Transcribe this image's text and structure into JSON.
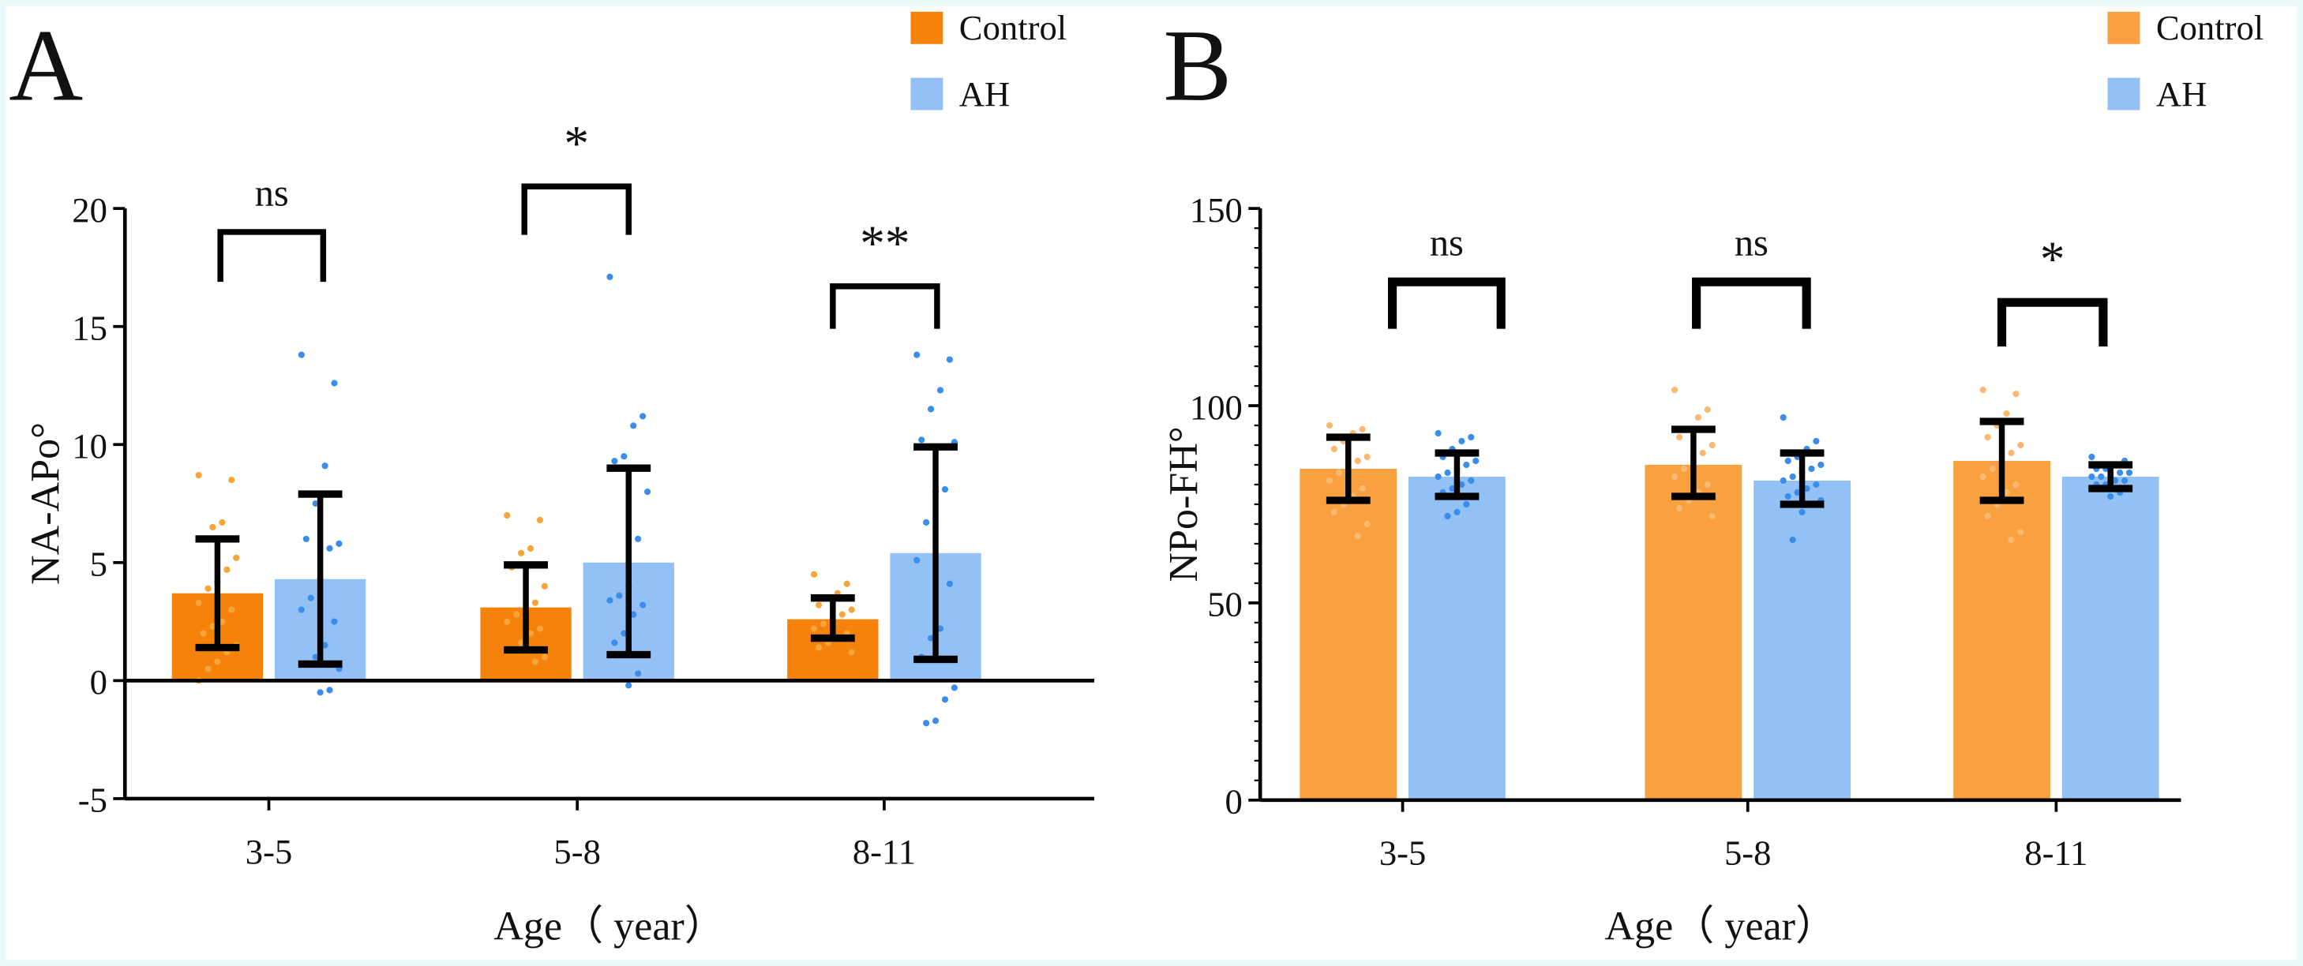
{
  "chart_data": [
    {
      "type": "bar",
      "panel_label": "A",
      "xlabel": "Age（ year）",
      "ylabel": "NA-APo°",
      "ylim": [
        -5,
        20
      ],
      "yticks": [
        "-5",
        "0",
        "5",
        "10",
        "15",
        "20"
      ],
      "categories": [
        "3-5",
        "5-8",
        "8-11"
      ],
      "legend": {
        "placement": "top-right"
      },
      "significance": [
        "ns",
        "*",
        "**"
      ],
      "series": [
        {
          "name": "Control",
          "color": "#F5820A",
          "dot_color": "#F7A43A",
          "values": [
            3.7,
            3.1,
            2.6
          ],
          "sd_low": [
            1.4,
            1.3,
            1.8
          ],
          "sd_high": [
            6.0,
            4.9,
            3.5
          ],
          "points": [
            [
              8.7,
              8.5,
              6.7,
              6.5,
              6.0,
              5.2,
              4.7,
              4.2,
              3.9,
              3.3,
              3.0,
              2.5,
              2.3,
              2.0,
              1.5,
              1.2,
              0.8,
              0.5,
              0.0
            ],
            [
              7.0,
              6.8,
              5.6,
              5.4,
              4.8,
              4.0,
              3.3,
              3.0,
              2.8,
              2.5,
              2.2,
              2.0,
              1.6,
              1.3,
              1.0,
              0.8
            ],
            [
              4.5,
              4.1,
              3.7,
              3.5,
              3.2,
              3.0,
              2.8,
              2.6,
              2.4,
              2.2,
              2.0,
              1.8,
              1.6,
              1.4,
              1.2
            ]
          ]
        },
        {
          "name": "AH",
          "color": "#93C1F6",
          "dot_color": "#3A8EEA",
          "values": [
            4.3,
            5.0,
            5.4
          ],
          "sd_low": [
            0.7,
            1.1,
            0.9
          ],
          "sd_high": [
            7.9,
            9.0,
            9.9
          ],
          "points": [
            [
              13.8,
              12.6,
              9.1,
              7.5,
              6.0,
              5.8,
              5.6,
              4.3,
              3.5,
              3.0,
              2.5,
              1.5,
              1.0,
              0.7,
              0.5,
              -0.4,
              -0.5
            ],
            [
              17.1,
              11.2,
              10.8,
              9.5,
              9.3,
              8.0,
              6.0,
              4.0,
              3.6,
              3.4,
              3.2,
              2.8,
              2.0,
              1.6,
              1.1,
              0.3,
              -0.2
            ],
            [
              13.8,
              13.6,
              12.3,
              11.5,
              10.2,
              10.1,
              8.1,
              8.0,
              6.7,
              5.1,
              4.1,
              2.2,
              1.8,
              1.0,
              -0.3,
              -0.8,
              -1.7,
              -1.8
            ]
          ]
        }
      ]
    },
    {
      "type": "bar",
      "panel_label": "B",
      "xlabel": "Age（ year）",
      "ylabel": "NPo-FH°",
      "ylim": [
        0,
        150
      ],
      "yticks": [
        "0",
        "50",
        "100",
        "150"
      ],
      "categories": [
        "3-5",
        "5-8",
        "8-11"
      ],
      "legend": {
        "placement": "top-right"
      },
      "significance": [
        "ns",
        "ns",
        "*"
      ],
      "series": [
        {
          "name": "Control",
          "color": "#F9A141",
          "dot_color": "#FBB870",
          "values": [
            84,
            85,
            86
          ],
          "sd_low": [
            76,
            77,
            76
          ],
          "sd_high": [
            92,
            94,
            96
          ],
          "points": [
            [
              95,
              94,
              93,
              91,
              89,
              87,
              86,
              84,
              83,
              81,
              79,
              77,
              75,
              73,
              70,
              67
            ],
            [
              104,
              99,
              97,
              94,
              92,
              90,
              88,
              86,
              84,
              82,
              80,
              78,
              76,
              74,
              72
            ],
            [
              104,
              103,
              98,
              95,
              92,
              90,
              88,
              86,
              84,
              82,
              80,
              78,
              75,
              72,
              68,
              66
            ]
          ]
        },
        {
          "name": "AH",
          "color": "#93C1F6",
          "dot_color": "#3A8EEA",
          "values": [
            82,
            81,
            82
          ],
          "sd_low": [
            77,
            75,
            79
          ],
          "sd_high": [
            88,
            88,
            85
          ],
          "points": [
            [
              93,
              92,
              91,
              89,
              87,
              86,
              85,
              84,
              83,
              82,
              81,
              80,
              79,
              78,
              77,
              75,
              73,
              72
            ],
            [
              97,
              91,
              89,
              87,
              86,
              85,
              84,
              83,
              82,
              81,
              80,
              79,
              78,
              77,
              76,
              75,
              73,
              66
            ],
            [
              87,
              86,
              85,
              84,
              84,
              83,
              83,
              82,
              82,
              82,
              81,
              81,
              80,
              80,
              79,
              78,
              77
            ]
          ]
        }
      ]
    }
  ]
}
